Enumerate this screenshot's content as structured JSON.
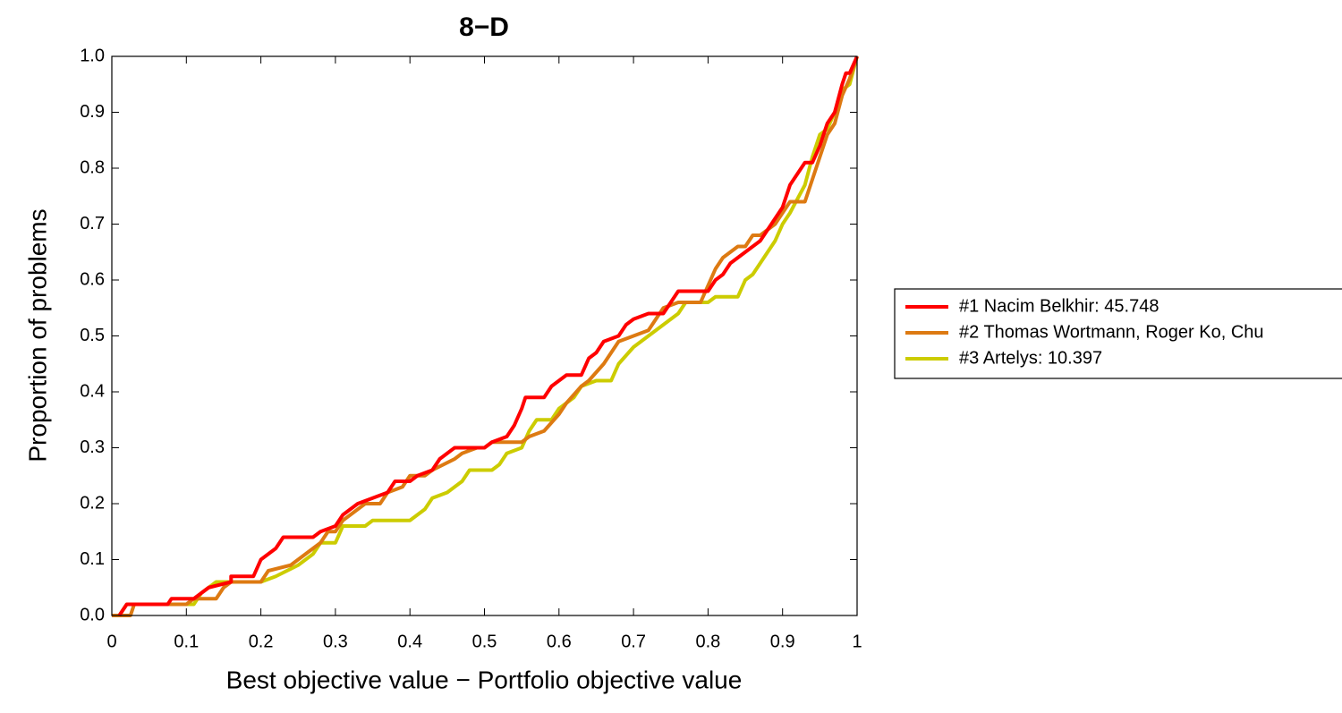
{
  "chart_data": {
    "type": "line",
    "title": "8−D",
    "x_label": "Best objective value − Portfolio objective value",
    "y_label": "Proportion of problems",
    "xlim": [
      0,
      1
    ],
    "ylim": [
      0,
      1
    ],
    "xticks": [
      0,
      0.1,
      0.2,
      0.3,
      0.4,
      0.5,
      0.6,
      0.7,
      0.8,
      0.9,
      1
    ],
    "yticks": [
      {
        "value": 0,
        "label": "0.0"
      },
      0.1,
      0.2,
      0.3,
      0.4,
      0.5,
      0.6,
      0.7,
      0.8,
      0.9,
      {
        "value": 1,
        "label": "1.0"
      }
    ],
    "legend": "right",
    "series": [
      {
        "name": "#1 Nacim Belkhir: 45.748",
        "color": "#ff0000",
        "x": [
          0.01,
          0.02,
          0.075,
          0.08,
          0.11,
          0.13,
          0.16,
          0.16,
          0.19,
          0.2,
          0.21,
          0.22,
          0.23,
          0.27,
          0.28,
          0.3,
          0.31,
          0.33,
          0.35,
          0.37,
          0.38,
          0.4,
          0.41,
          0.43,
          0.44,
          0.45,
          0.46,
          0.5,
          0.51,
          0.53,
          0.54,
          0.55,
          0.555,
          0.58,
          0.59,
          0.6,
          0.61,
          0.63,
          0.64,
          0.65,
          0.66,
          0.68,
          0.69,
          0.7,
          0.72,
          0.74,
          0.75,
          0.76,
          0.8,
          0.81,
          0.82,
          0.83,
          0.84,
          0.86,
          0.87,
          0.88,
          0.89,
          0.9,
          0.905,
          0.91,
          0.92,
          0.93,
          0.94,
          0.95,
          0.96,
          0.97,
          0.98,
          0.985,
          0.99,
          1
        ],
        "values": [
          0,
          0.02,
          0.02,
          0.03,
          0.03,
          0.05,
          0.06,
          0.07,
          0.07,
          0.1,
          0.11,
          0.12,
          0.14,
          0.14,
          0.15,
          0.16,
          0.18,
          0.2,
          0.21,
          0.22,
          0.24,
          0.24,
          0.25,
          0.26,
          0.28,
          0.29,
          0.3,
          0.3,
          0.31,
          0.32,
          0.34,
          0.37,
          0.39,
          0.39,
          0.41,
          0.42,
          0.43,
          0.43,
          0.46,
          0.47,
          0.49,
          0.5,
          0.52,
          0.53,
          0.54,
          0.54,
          0.56,
          0.58,
          0.58,
          0.6,
          0.61,
          0.63,
          0.64,
          0.66,
          0.67,
          0.69,
          0.71,
          0.73,
          0.75,
          0.77,
          0.79,
          0.81,
          0.81,
          0.84,
          0.88,
          0.9,
          0.95,
          0.97,
          0.97,
          1
        ]
      },
      {
        "name": "#2 Thomas Wortmann, Roger Ko, Chu",
        "color": "#dd7a12",
        "x": [
          0,
          0.025,
          0.03,
          0.1,
          0.11,
          0.14,
          0.15,
          0.16,
          0.2,
          0.21,
          0.24,
          0.26,
          0.28,
          0.29,
          0.3,
          0.31,
          0.33,
          0.34,
          0.36,
          0.37,
          0.39,
          0.4,
          0.42,
          0.43,
          0.46,
          0.47,
          0.49,
          0.5,
          0.51,
          0.55,
          0.56,
          0.58,
          0.6,
          0.61,
          0.63,
          0.64,
          0.66,
          0.68,
          0.7,
          0.72,
          0.73,
          0.74,
          0.76,
          0.79,
          0.8,
          0.81,
          0.82,
          0.83,
          0.84,
          0.85,
          0.86,
          0.87,
          0.89,
          0.9,
          0.91,
          0.93,
          0.94,
          0.95,
          0.96,
          0.97,
          0.98,
          0.99,
          1
        ],
        "values": [
          0,
          0,
          0.02,
          0.02,
          0.03,
          0.03,
          0.05,
          0.06,
          0.06,
          0.08,
          0.09,
          0.11,
          0.13,
          0.15,
          0.15,
          0.17,
          0.19,
          0.2,
          0.2,
          0.22,
          0.23,
          0.25,
          0.25,
          0.26,
          0.28,
          0.29,
          0.3,
          0.3,
          0.31,
          0.31,
          0.32,
          0.33,
          0.36,
          0.38,
          0.41,
          0.42,
          0.45,
          0.49,
          0.5,
          0.51,
          0.53,
          0.55,
          0.56,
          0.56,
          0.59,
          0.62,
          0.64,
          0.65,
          0.66,
          0.66,
          0.68,
          0.68,
          0.7,
          0.72,
          0.74,
          0.74,
          0.78,
          0.82,
          0.86,
          0.88,
          0.93,
          0.96,
          1
        ]
      },
      {
        "name": "#3 Artelys: 10.397",
        "color": "#cccc00",
        "x": [
          0,
          0.01,
          0.02,
          0.11,
          0.12,
          0.13,
          0.14,
          0.2,
          0.22,
          0.25,
          0.27,
          0.28,
          0.3,
          0.31,
          0.34,
          0.35,
          0.4,
          0.41,
          0.42,
          0.43,
          0.45,
          0.47,
          0.48,
          0.51,
          0.52,
          0.53,
          0.55,
          0.56,
          0.57,
          0.59,
          0.6,
          0.62,
          0.63,
          0.65,
          0.67,
          0.68,
          0.7,
          0.72,
          0.74,
          0.76,
          0.77,
          0.8,
          0.81,
          0.84,
          0.85,
          0.86,
          0.87,
          0.88,
          0.89,
          0.9,
          0.91,
          0.93,
          0.94,
          0.95,
          0.96,
          0.97,
          0.98,
          0.99,
          1
        ],
        "values": [
          0,
          0,
          0.02,
          0.02,
          0.04,
          0.05,
          0.06,
          0.06,
          0.07,
          0.09,
          0.11,
          0.13,
          0.13,
          0.16,
          0.16,
          0.17,
          0.17,
          0.18,
          0.19,
          0.21,
          0.22,
          0.24,
          0.26,
          0.26,
          0.27,
          0.29,
          0.3,
          0.33,
          0.35,
          0.35,
          0.37,
          0.39,
          0.41,
          0.42,
          0.42,
          0.45,
          0.48,
          0.5,
          0.52,
          0.54,
          0.56,
          0.56,
          0.57,
          0.57,
          0.6,
          0.61,
          0.63,
          0.65,
          0.67,
          0.7,
          0.72,
          0.77,
          0.82,
          0.86,
          0.87,
          0.9,
          0.94,
          0.95,
          1
        ]
      }
    ]
  }
}
